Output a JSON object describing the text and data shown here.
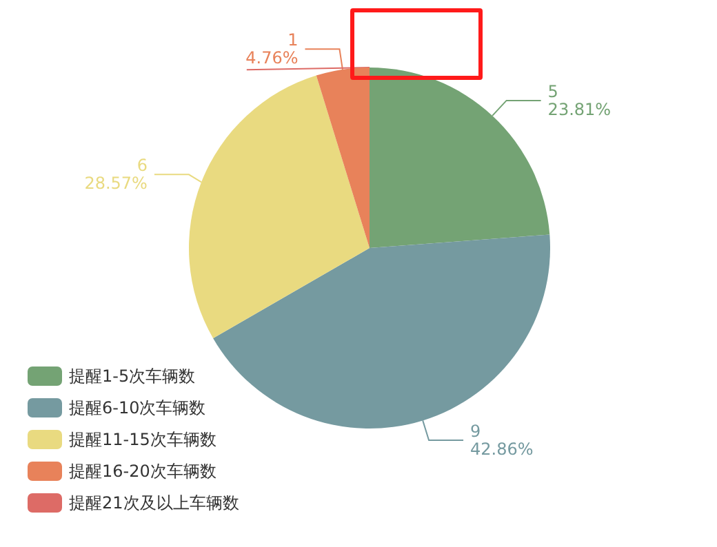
{
  "chart_data": {
    "type": "pie",
    "categories": [
      "提醒1-5次车辆数",
      "提醒6-10次车辆数",
      "提醒11-15次车辆数",
      "提醒16-20次车辆数",
      "提醒21次及以上车辆数"
    ],
    "values": [
      5,
      9,
      6,
      1,
      0
    ],
    "colors": [
      "#74a374",
      "#759aa0",
      "#e9da80",
      "#e8825a",
      "#dd6b66"
    ],
    "value_labels": [
      "5\n23.81%",
      "9\n42.86%",
      "6\n28.57%",
      "1\n4.76%",
      null
    ],
    "legend": "bottom left"
  }
}
